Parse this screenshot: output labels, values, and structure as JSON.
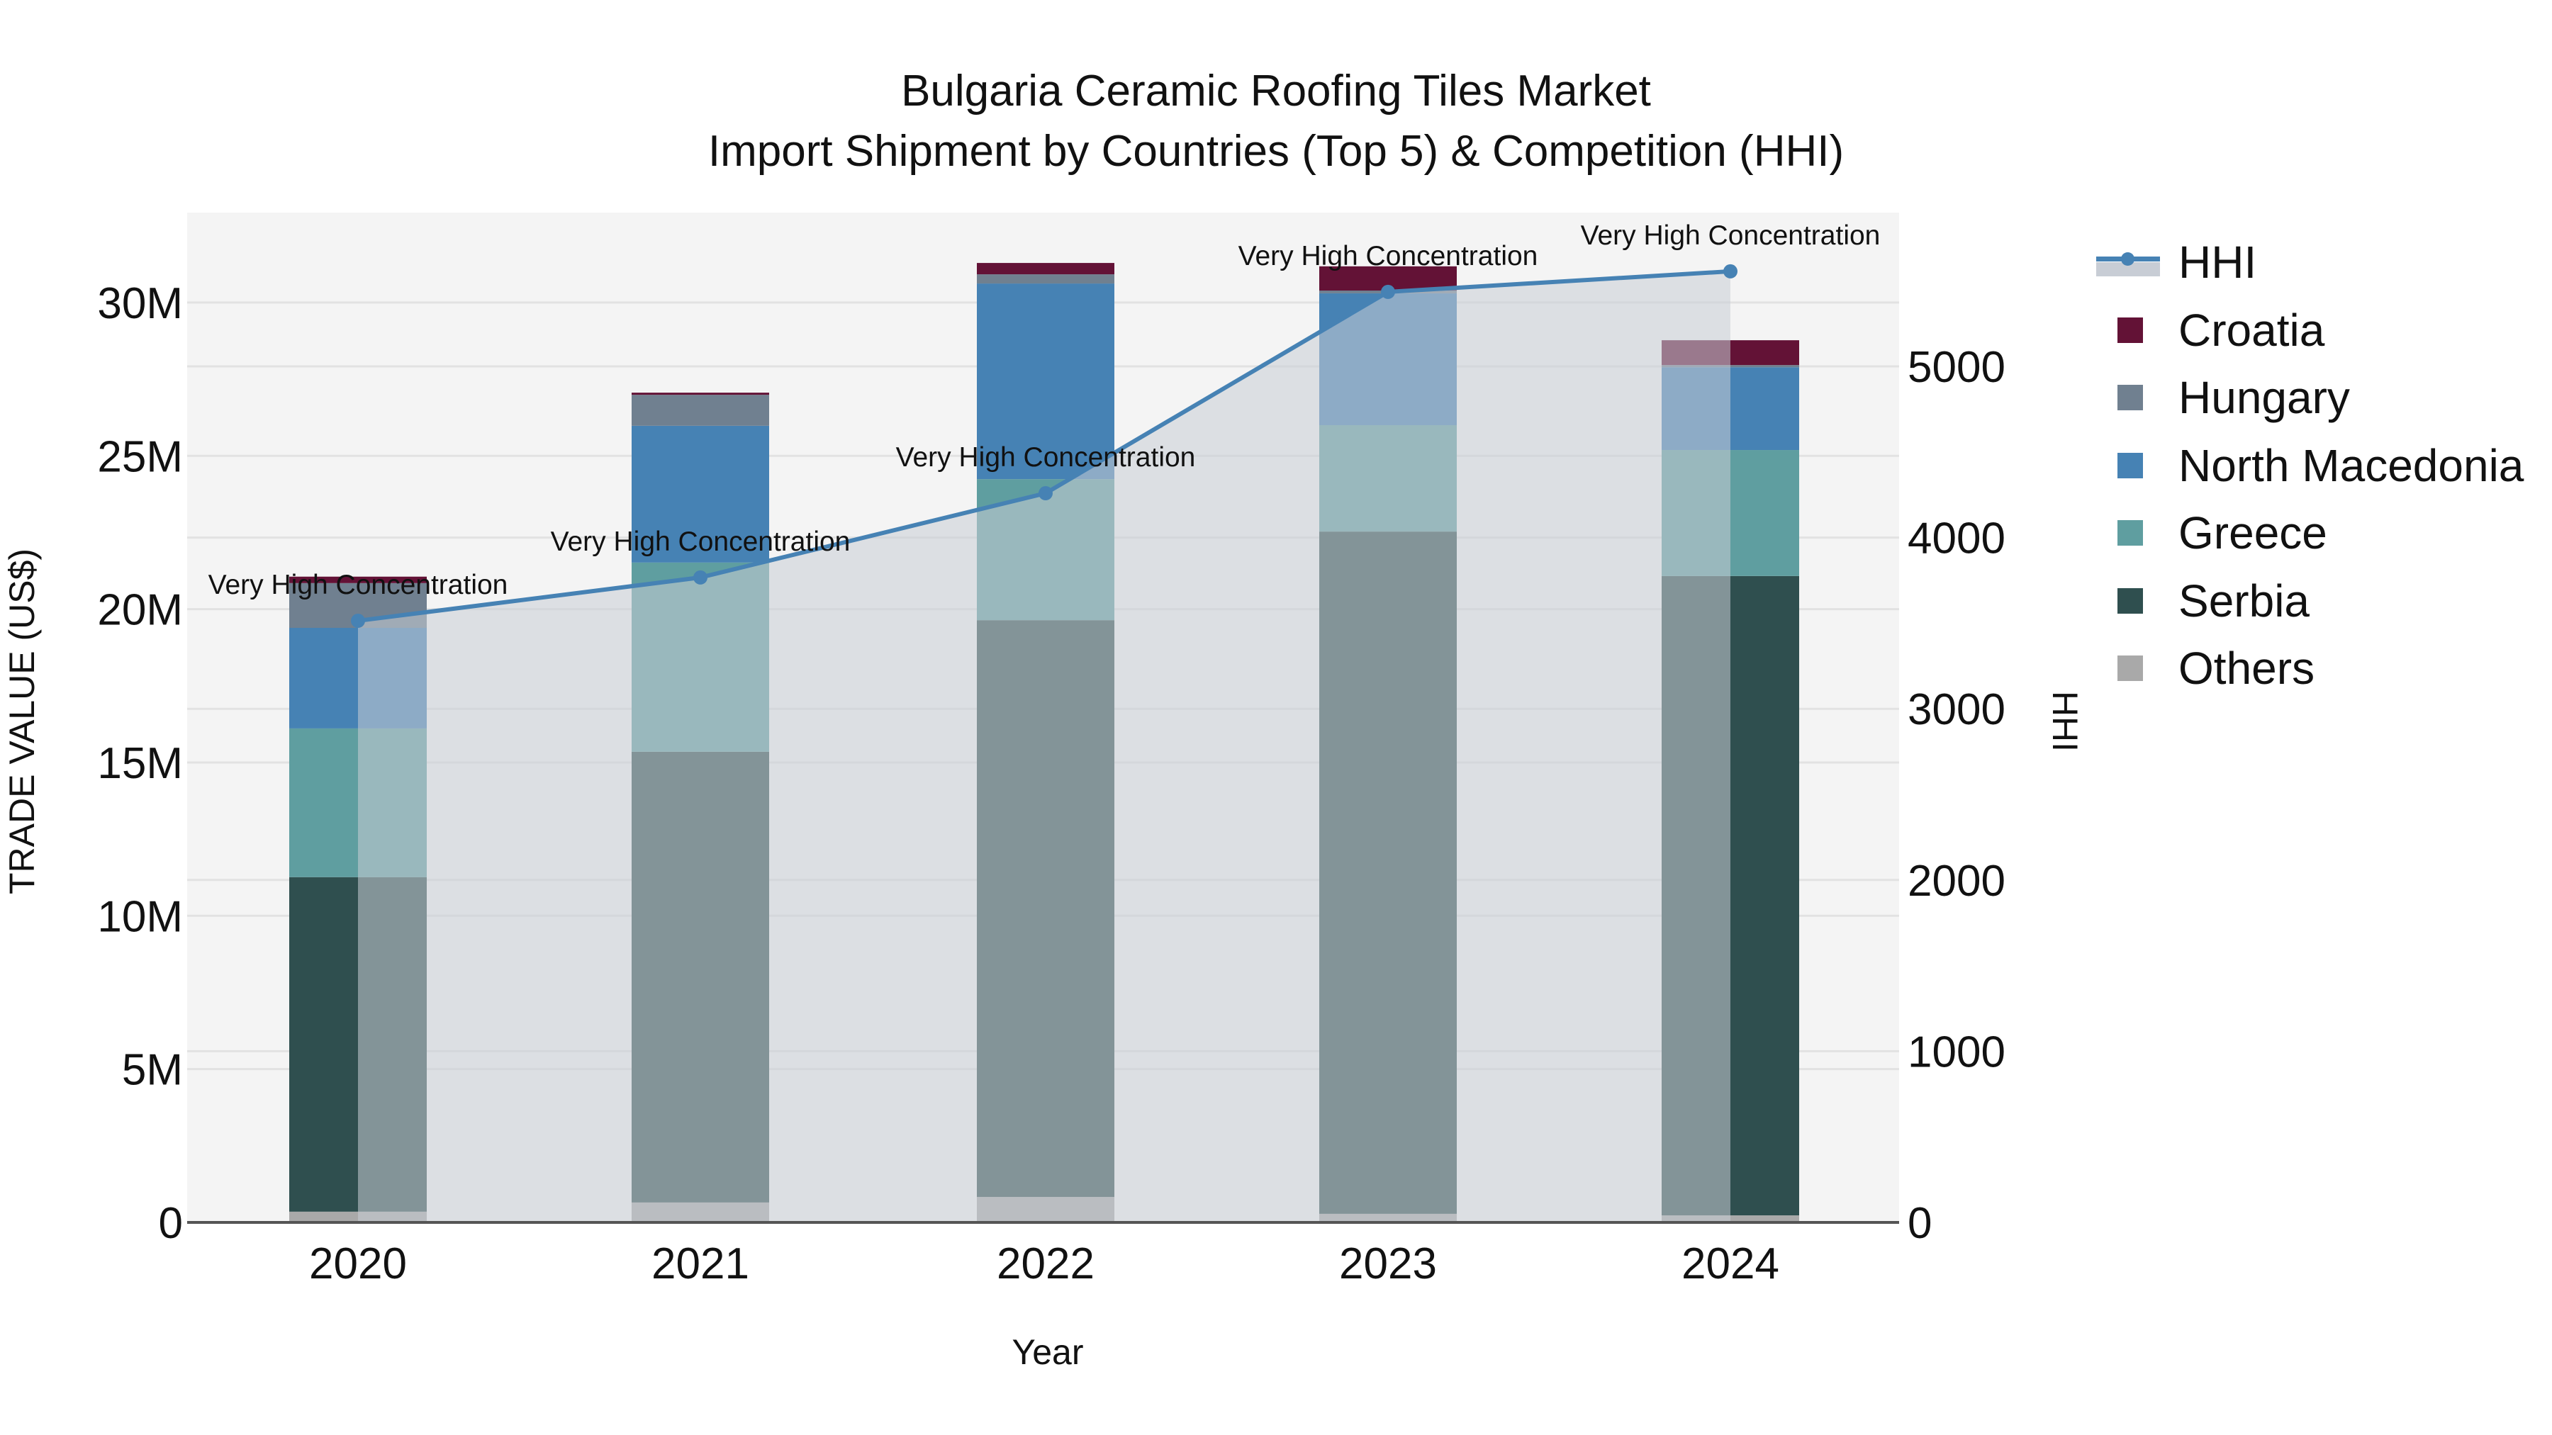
{
  "title": {
    "line1": "Bulgaria Ceramic Roofing Tiles Market",
    "line2": "Import Shipment by Countries (Top 5) & Competition (HHI)"
  },
  "axes": {
    "x_title": "Year",
    "y_left_title": "TRADE VALUE (US$)",
    "y_right_title": "HHI",
    "y_left_ticks": [
      "0",
      "5M",
      "10M",
      "15M",
      "20M",
      "25M",
      "30M"
    ],
    "y_right_ticks": [
      "0",
      "1000",
      "2000",
      "3000",
      "4000",
      "5000"
    ]
  },
  "legend": {
    "items": [
      {
        "label": "HHI",
        "type": "line",
        "color": "#4682b4"
      },
      {
        "label": "Croatia",
        "type": "bar",
        "color": "#631236"
      },
      {
        "label": "Hungary",
        "type": "bar",
        "color": "#708090"
      },
      {
        "label": "North Macedonia",
        "type": "bar",
        "color": "#4682b4"
      },
      {
        "label": "Greece",
        "type": "bar",
        "color": "#5f9ea0"
      },
      {
        "label": "Serbia",
        "type": "bar",
        "color": "#2f4f4f"
      },
      {
        "label": "Others",
        "type": "bar",
        "color": "#a9a9a9"
      }
    ]
  },
  "annotation_label": "Very High Concentration",
  "colors": {
    "plot_bg": "#f4f4f4",
    "grid": "#e2e2e2",
    "hhi_area": "#c8cdd5",
    "hhi_line": "#4682b4",
    "axis_line": "#555555"
  },
  "chart_data": {
    "type": "bar",
    "stacked": true,
    "title": "Bulgaria Ceramic Roofing Tiles Market — Import Shipment by Countries (Top 5) & Competition (HHI)",
    "xlabel": "Year",
    "ylabel": "TRADE VALUE (US$)",
    "y2label": "HHI",
    "categories": [
      "2020",
      "2021",
      "2022",
      "2023",
      "2024"
    ],
    "ylim": [
      0,
      32930000
    ],
    "y2lim": [
      0,
      5898
    ],
    "unit": "US$ (millions in values)",
    "series": [
      {
        "name": "Others",
        "color": "#a9a9a9",
        "values": [
          0.35,
          0.65,
          0.83,
          0.28,
          0.23
        ]
      },
      {
        "name": "Serbia",
        "color": "#2f4f4f",
        "values": [
          10.91,
          14.7,
          18.81,
          22.25,
          20.85
        ]
      },
      {
        "name": "Greece",
        "color": "#5f9ea0",
        "values": [
          4.85,
          6.17,
          4.6,
          3.47,
          4.11
        ]
      },
      {
        "name": "North Macedonia",
        "color": "#4682b4",
        "values": [
          3.28,
          4.46,
          6.38,
          4.3,
          2.7
        ]
      },
      {
        "name": "Hungary",
        "color": "#708090",
        "values": [
          1.46,
          1.01,
          0.3,
          0.09,
          0.07
        ]
      },
      {
        "name": "Croatia",
        "color": "#631236",
        "values": [
          0.21,
          0.07,
          0.37,
          0.79,
          0.81
        ]
      }
    ],
    "line_series": {
      "name": "HHI",
      "axis": "right",
      "type": "line+area",
      "color": "#4682b4",
      "values": [
        3514,
        3767,
        4259,
        5435,
        5555
      ],
      "annotations": [
        "Very High Concentration",
        "Very High Concentration",
        "Very High Concentration",
        "Very High Concentration",
        "Very High Concentration"
      ]
    },
    "grid": true,
    "legend_position": "right"
  }
}
